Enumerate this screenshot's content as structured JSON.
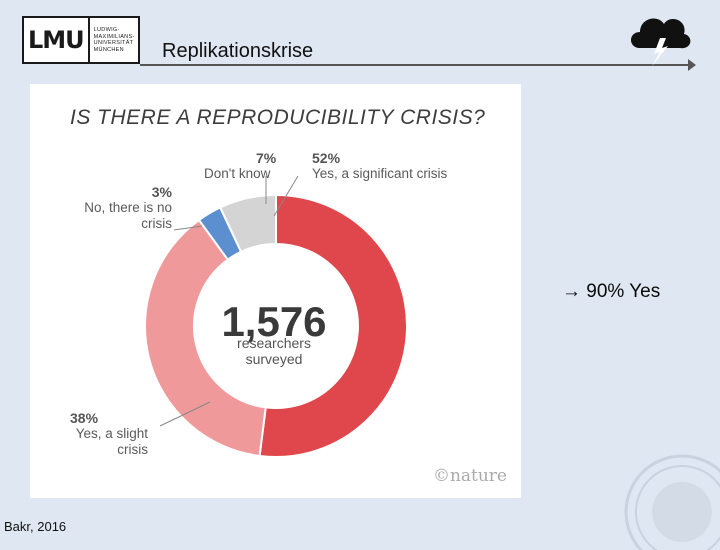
{
  "header": {
    "logo_main": "LMU",
    "logo_sub": "LUDWIG-MAXIMILIANS-UNIVERSITÄT MÜNCHEN",
    "title": "Replikationskrise",
    "icon": "storm-cloud-icon"
  },
  "figure": {
    "nature_mark": "©nature",
    "center_number": "1,576",
    "center_label_line1": "researchers",
    "center_label_line2": "surveyed"
  },
  "chart_data": {
    "type": "pie",
    "title": "IS THERE A REPRODUCIBILITY CRISIS?",
    "donut": true,
    "slices": [
      {
        "label": "Yes, a significant crisis",
        "value": 52,
        "color": "#e0474c"
      },
      {
        "label": "Yes, a slight crisis",
        "value": 38,
        "color": "#f0999b"
      },
      {
        "label": "No, there is no crisis",
        "value": 3,
        "color": "#5b8fd0"
      },
      {
        "label": "Don't know",
        "value": 7,
        "color": "#d4d4d4"
      }
    ],
    "callouts": [
      {
        "pct": "52%",
        "text": "Yes, a significant crisis"
      },
      {
        "pct": "7%",
        "text": "Don't know"
      },
      {
        "pct": "3%",
        "line1": "No, there is no",
        "line2": "crisis"
      },
      {
        "pct": "38%",
        "line1": "Yes, a slight",
        "line2": "crisis"
      }
    ]
  },
  "side_note": "→ 90% Yes",
  "citation": "Bakr, 2016"
}
